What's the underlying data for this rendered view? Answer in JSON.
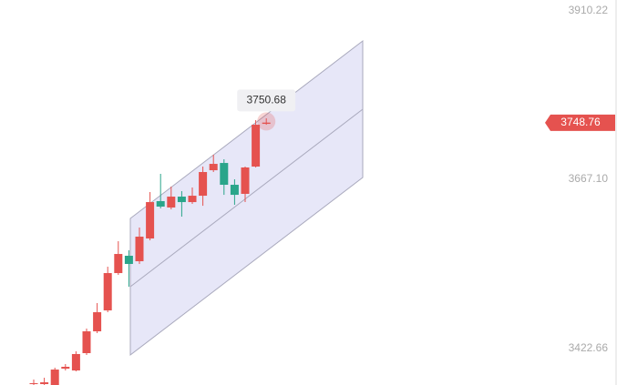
{
  "chart_data": {
    "type": "candlestick",
    "categories": [
      null,
      null,
      null,
      null,
      null,
      null,
      null,
      null,
      null,
      null,
      null,
      null,
      null,
      null,
      null,
      null,
      null,
      null,
      null,
      null,
      null,
      null,
      null
    ],
    "open": [
      3371.4,
      3371.4,
      3370.1,
      3393.7,
      3391.1,
      3416.1,
      3447.6,
      3477.8,
      3531.7,
      3556.7,
      3548.8,
      3581.7,
      3635.6,
      3626.4,
      3642.1,
      3634.2,
      3643.4,
      3680.2,
      3690.7,
      3659.2,
      3646.1,
      3685.5,
      3747.2
    ],
    "high": [
      3378.0,
      3380.6,
      3395.1,
      3400.3,
      3418.7,
      3451.6,
      3488.4,
      3540.9,
      3577.7,
      3564.6,
      3597.5,
      3648.7,
      3675.0,
      3656.6,
      3650.0,
      3655.3,
      3685.5,
      3702.6,
      3696.0,
      3667.1,
      3685.5,
      3752.5,
      3755.2
    ],
    "low": [
      3370.1,
      3370.1,
      3370.1,
      3391.1,
      3389.8,
      3413.5,
      3445.0,
      3475.2,
      3529.1,
      3512.0,
      3544.9,
      3579.0,
      3625.1,
      3623.7,
      3613.2,
      3631.6,
      3628.9,
      3677.6,
      3644.7,
      3630.3,
      3634.2,
      3684.2,
      3745.9
    ],
    "close": [
      3372.7,
      3374.0,
      3392.4,
      3396.4,
      3414.8,
      3447.6,
      3475.2,
      3531.7,
      3559.3,
      3544.9,
      3584.3,
      3634.2,
      3627.7,
      3642.1,
      3634.2,
      3643.4,
      3677.6,
      3689.4,
      3659.2,
      3644.7,
      3684.2,
      3745.9,
      3749.0
    ],
    "up_color": "#e5524f",
    "down_color": "#2aa58a",
    "ylim": [
      3370.1,
      3926.0
    ],
    "yticks": [
      3910.22,
      {
        "value": 3667.1,
        "label": "3667.10"
      },
      3422.66
    ],
    "grid": false,
    "last_price": 3748.76,
    "crosshair_value": 3750.68
  }
}
